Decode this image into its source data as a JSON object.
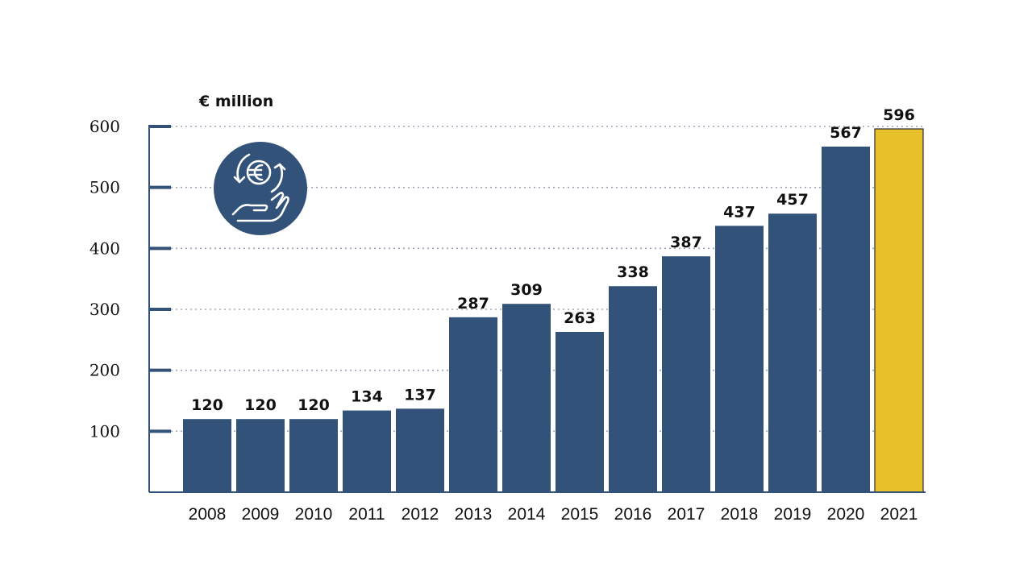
{
  "chart_data": {
    "type": "bar",
    "ylabel": "€ million",
    "ylim": [
      0,
      600
    ],
    "yticks": [
      100,
      200,
      300,
      400,
      500,
      600
    ],
    "grid": true,
    "categories": [
      "2008",
      "2009",
      "2010",
      "2011",
      "2012",
      "2013",
      "2014",
      "2015",
      "2016",
      "2017",
      "2018",
      "2019",
      "2020",
      "2021"
    ],
    "values": [
      120,
      120,
      120,
      134,
      137,
      287,
      309,
      263,
      338,
      387,
      437,
      457,
      567,
      596
    ],
    "highlight_category": "2021",
    "colors": {
      "bar": "#33527A",
      "highlight": "#E7C12A",
      "axis": "#33527A",
      "grid": "#9BA7B8"
    },
    "icon": "euro-hand-icon"
  }
}
